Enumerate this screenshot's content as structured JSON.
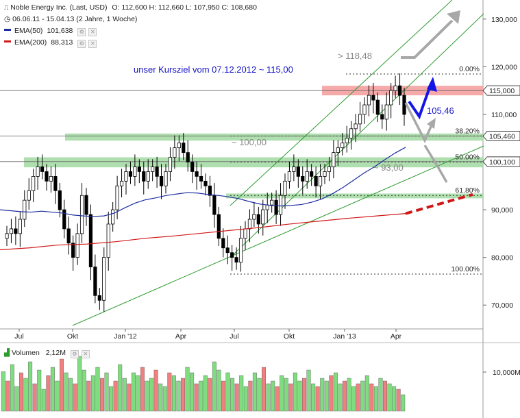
{
  "legend": {
    "instrument": "Noble Energy Inc. (Last, USD)",
    "ohlc": "O: 112,600   H: 112,660   L: 107,950   C: 108,680",
    "period": "06.06.11 - 15.04.13 (2 Jahre, 1 Woche)",
    "ema50_label": "EMA(50)",
    "ema50_value": "101,638",
    "ema200_label": "EMA(200)",
    "ema200_value": "88,313",
    "volume_label": "Volumen",
    "volume_value": "2,12M"
  },
  "colors": {
    "up": "#7fdc7f",
    "down": "#f08080",
    "wick": "#000000",
    "ema50": "#1c2da0",
    "ema200": "#d01818",
    "trend": "#2e9a2e",
    "resistance_zone": "#f4a0a0",
    "support_zone": "#a6daa6",
    "arrow_blue": "#1414e6",
    "arrow_gray": "#a8a8a8"
  },
  "chart_data": [
    {
      "type": "candlestick",
      "x_ticks": [
        "Jul",
        "Okt",
        "Jan '12",
        "Apr",
        "Jul",
        "Okt",
        "Jan '13",
        "Apr"
      ],
      "y_ticks": [
        "130,000",
        "120,000",
        "110,000",
        "100,000",
        "90,000",
        "80,000",
        "70,000"
      ],
      "ylim": [
        65,
        134
      ],
      "price_labels": [
        "115,000",
        "105,460",
        "100,100"
      ],
      "fib_labels": [
        "0.00%",
        "38.20%",
        "50.00%",
        "61.80%",
        "100.00%"
      ],
      "fib_levels": [
        118.48,
        105.46,
        100.0,
        93.0,
        76.5
      ],
      "annotations": {
        "target": "unser Kursziel vom 07.12.2012   ~ 115,00",
        "high": "> 118,48",
        "fib38": "105,46",
        "fib50": "~ 100,00",
        "fib62": "~ 93,00"
      },
      "zones": [
        {
          "from": 114.0,
          "to": 116.0,
          "kind": "resistance"
        },
        {
          "from": 104.5,
          "to": 106.0,
          "kind": "support"
        },
        {
          "from": 98.9,
          "to": 101.0,
          "kind": "support"
        },
        {
          "from": 92.4,
          "to": 93.4,
          "kind": "support"
        }
      ],
      "close_series": [
        85,
        86,
        85,
        88,
        92,
        94,
        97,
        99,
        98,
        96,
        97,
        94,
        90,
        86,
        83,
        80,
        85,
        93,
        89,
        78,
        72,
        71,
        80,
        87,
        90,
        95,
        96,
        98,
        97,
        99,
        98,
        96,
        98,
        99,
        97,
        95,
        98,
        101,
        103,
        104,
        102,
        100,
        98,
        97,
        96,
        95,
        93,
        89,
        84,
        82,
        81,
        80,
        79,
        84,
        86,
        88,
        89,
        87,
        90,
        91,
        92,
        89,
        93,
        96,
        98,
        99,
        97,
        96,
        98,
        97,
        95,
        97,
        98,
        99,
        102,
        103,
        104,
        105,
        107,
        108,
        110,
        112,
        114,
        113,
        110,
        109,
        112,
        115,
        116,
        114,
        110
      ],
      "ema50": [
        90,
        89.8,
        89.6,
        89.5,
        89.7,
        89.5,
        89.3,
        88.9,
        88.7,
        88.6,
        88.7,
        89.3,
        90.4,
        91.4,
        92.1,
        92.5,
        93,
        93.3,
        93.6,
        93.5,
        93.2,
        93,
        92.7,
        92.3,
        91.7,
        91.2,
        90.9,
        90.8,
        90.9,
        91.1,
        91.6,
        92.3,
        93.4,
        94.7,
        96.2,
        97.7,
        99,
        100.5,
        101.9,
        103.1
      ],
      "ema200": [
        81.6,
        82,
        82.6,
        82.8,
        83.3,
        84,
        84.5,
        85.1,
        85.7,
        86.3,
        87,
        87.6,
        88.2,
        88.7,
        89.2
      ],
      "volume": {
        "ylabel_tick": "10,000M",
        "bars": [
          0.72,
          0.55,
          0.85,
          0.45,
          0.7,
          0.6,
          0.9,
          0.5,
          0.75,
          0.4,
          0.65,
          0.8,
          0.55,
          0.95,
          0.7,
          0.6,
          0.5,
          1.0,
          0.75,
          0.55,
          0.65,
          0.8,
          0.6,
          0.7,
          0.45,
          0.55,
          0.85,
          0.6,
          0.5,
          0.7,
          0.65,
          0.8,
          0.55,
          0.6,
          0.75,
          0.5,
          0.45,
          0.7,
          0.65,
          0.55,
          0.6,
          0.8,
          0.7,
          0.5,
          0.55,
          0.65,
          0.6,
          0.9,
          0.75,
          0.55,
          0.7,
          0.6,
          0.5,
          0.65,
          0.45,
          0.55,
          0.7,
          0.6,
          0.8,
          0.5,
          0.55,
          0.45,
          0.65,
          0.6,
          0.5,
          0.7,
          0.55,
          0.6,
          0.75,
          0.5,
          0.45,
          0.6,
          0.55,
          0.65,
          0.7,
          0.5,
          0.55,
          0.6,
          0.45,
          0.5,
          0.55,
          0.65,
          0.5,
          0.45,
          0.6,
          0.55,
          0.5,
          0.45,
          0.4,
          0.3
        ]
      }
    }
  ]
}
